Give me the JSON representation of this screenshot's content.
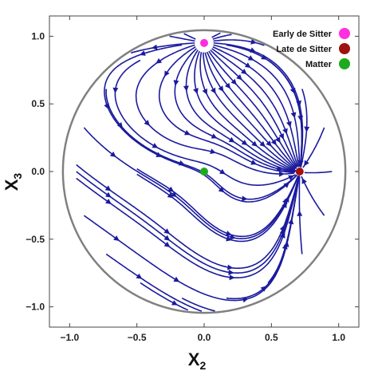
{
  "chart_data": {
    "type": "streamplot",
    "title": "",
    "xlabel": "X",
    "xlabel_sub": "2",
    "ylabel": "X",
    "ylabel_sub": "3",
    "xlim": [
      -1.15,
      1.15
    ],
    "ylim": [
      -1.15,
      1.15
    ],
    "x_ticks": [
      -1.0,
      -0.5,
      0.0,
      0.5,
      1.0
    ],
    "y_ticks": [
      -1.0,
      -0.5,
      0.0,
      0.5,
      1.0
    ],
    "x_tick_labels": [
      "−1.0",
      "−0.5",
      "0.0",
      "0.5",
      "1.0"
    ],
    "y_tick_labels": [
      "−1.0",
      "−0.5",
      "0.0",
      "0.5",
      "1.0"
    ],
    "boundary_circle": {
      "center": [
        0,
        0
      ],
      "radius": 1.05,
      "color": "#808080"
    },
    "stream_color": "#1a1a9e",
    "legend_position": "top-right",
    "fixed_points": [
      {
        "name": "Early de Sitter",
        "x": 0.0,
        "y": 0.95,
        "color": "#ff2ee0"
      },
      {
        "name": "Late de Sitter",
        "x": 0.71,
        "y": 0.0,
        "color": "#a01010"
      },
      {
        "name": "Matter",
        "x": 0.0,
        "y": 0.0,
        "color": "#1eaa1e"
      }
    ]
  }
}
